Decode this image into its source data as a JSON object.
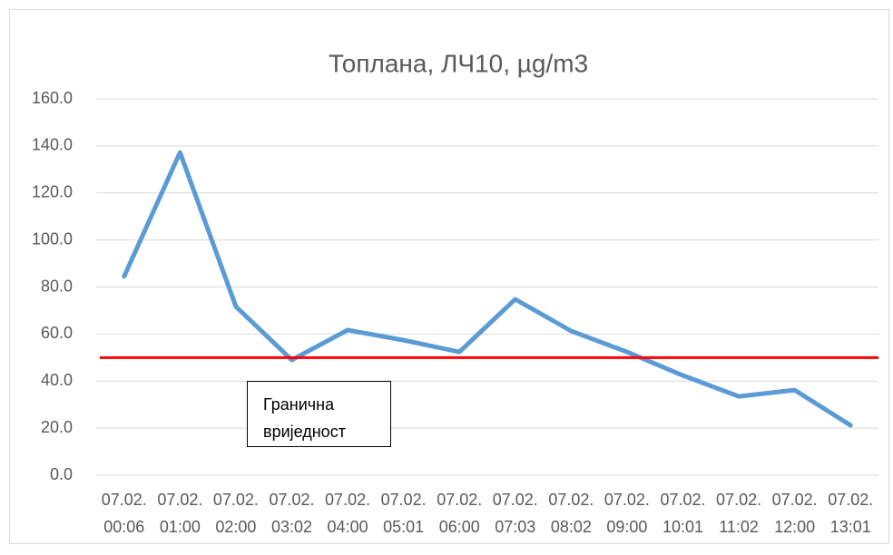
{
  "chart_data": {
    "type": "line",
    "title": "Топлана, ЛЧ10, µg/m3",
    "categories": [
      "07.02. 00:06",
      "07.02. 01:00",
      "07.02. 02:00",
      "07.02. 03:02",
      "07.02. 04:00",
      "07.02. 05:01",
      "07.02. 06:00",
      "07.02. 07:03",
      "07.02. 08:02",
      "07.02. 09:00",
      "07.02. 10:01",
      "07.02. 11:02",
      "07.02. 12:00",
      "07.02. 13:01"
    ],
    "series": [
      {
        "color": "#5b9bd5",
        "values": [
          84.5,
          137.2,
          71.7,
          49.0,
          61.7,
          57.4,
          52.4,
          74.8,
          61.3,
          52.4,
          42.4,
          33.5,
          36.2,
          21.2
        ]
      }
    ],
    "threshold": {
      "value": 50,
      "color": "#ff0000",
      "label": "Гранична вриједност"
    },
    "ylim": [
      0,
      160
    ],
    "yticks": [
      {
        "value": 0,
        "label": "0.0"
      },
      {
        "value": 20,
        "label": "20.0"
      },
      {
        "value": 40,
        "label": "40.0"
      },
      {
        "value": 60,
        "label": "60.0"
      },
      {
        "value": 80,
        "label": "80.0"
      },
      {
        "value": 100,
        "label": "100.0"
      },
      {
        "value": 120,
        "label": "120.0"
      },
      {
        "value": 140,
        "label": "140.0"
      },
      {
        "value": 160,
        "label": "160.0"
      }
    ],
    "grid": true
  }
}
